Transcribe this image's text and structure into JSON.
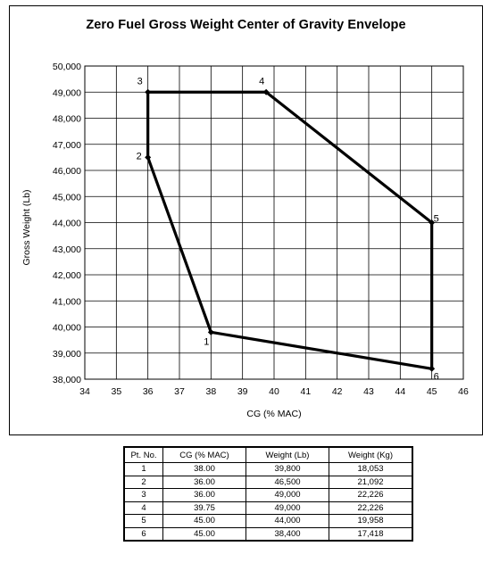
{
  "chart_data": {
    "type": "line",
    "title": "Zero Fuel Gross Weight Center of Gravity Envelope",
    "xlabel": "CG (% MAC)",
    "ylabel": "Gross Weight (Lb)",
    "xlim": [
      34,
      46
    ],
    "ylim": [
      38000,
      50000
    ],
    "x_ticks": [
      "34",
      "35",
      "36",
      "37",
      "38",
      "39",
      "40",
      "41",
      "42",
      "43",
      "44",
      "45",
      "46"
    ],
    "y_ticks": [
      "38,000",
      "39,000",
      "40,000",
      "41,000",
      "42,000",
      "43,000",
      "44,000",
      "45,000",
      "46,000",
      "47,000",
      "48,000",
      "49,000",
      "50,000"
    ],
    "grid": true,
    "series": [
      {
        "labels": [
          "1",
          "2",
          "3",
          "4",
          "5",
          "6"
        ],
        "x": [
          38.0,
          36.0,
          36.0,
          39.75,
          45.0,
          45.0
        ],
        "y": [
          39800,
          46500,
          49000,
          49000,
          44000,
          38400
        ],
        "closed_path_order": [
          2,
          1,
          0,
          5,
          4,
          3,
          2
        ]
      }
    ]
  },
  "table": {
    "headers": [
      "Pt. No.",
      "CG (% MAC)",
      "Weight (Lb)",
      "Weight (Kg)"
    ],
    "rows": [
      [
        "1",
        "38.00",
        "39,800",
        "18,053"
      ],
      [
        "2",
        "36.00",
        "46,500",
        "21,092"
      ],
      [
        "3",
        "36.00",
        "49,000",
        "22,226"
      ],
      [
        "4",
        "39.75",
        "49,000",
        "22,226"
      ],
      [
        "5",
        "45.00",
        "44,000",
        "19,958"
      ],
      [
        "6",
        "45.00",
        "38,400",
        "17,418"
      ]
    ]
  }
}
